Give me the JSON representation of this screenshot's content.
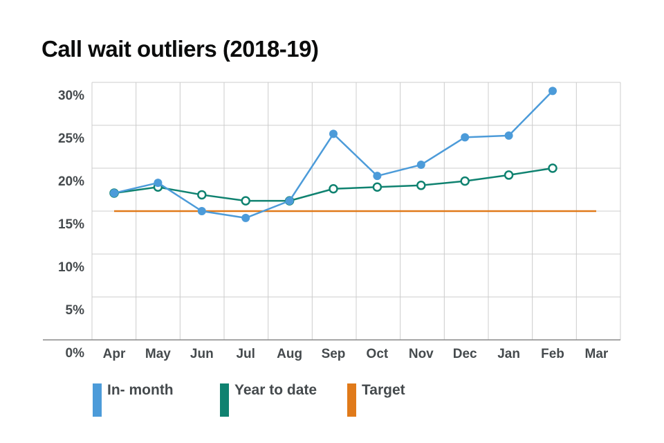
{
  "chart_data": {
    "type": "line",
    "title": "Call wait outliers (2018-19)",
    "xlabel": "",
    "ylabel": "",
    "categories": [
      "Apr",
      "May",
      "Jun",
      "Jul",
      "Aug",
      "Sep",
      "Oct",
      "Nov",
      "Dec",
      "Jan",
      "Feb",
      "Mar"
    ],
    "ylim": [
      0,
      30
    ],
    "yticks": [
      0,
      5,
      10,
      15,
      20,
      25,
      30
    ],
    "ytick_labels": [
      "0%",
      "5%",
      "10%",
      "15%",
      "20%",
      "25%",
      "30%"
    ],
    "grid": true,
    "legend_position": "bottom",
    "series": [
      {
        "name": "In- month",
        "color": "#4c9bd9",
        "marker": "filled-circle",
        "values": [
          17.1,
          18.3,
          15.0,
          14.2,
          16.2,
          24.0,
          19.1,
          20.4,
          23.6,
          23.8,
          29.0,
          null
        ]
      },
      {
        "name": "Year to date",
        "color": "#0f8270",
        "marker": "hollow-circle",
        "values": [
          17.1,
          17.8,
          16.9,
          16.2,
          16.2,
          17.6,
          17.8,
          18.0,
          18.5,
          19.2,
          20.0,
          null
        ]
      },
      {
        "name": "Target",
        "color": "#e07a1a",
        "marker": "none",
        "values": [
          15.0,
          15.0,
          15.0,
          15.0,
          15.0,
          15.0,
          15.0,
          15.0,
          15.0,
          15.0,
          15.0,
          15.0
        ]
      }
    ]
  }
}
